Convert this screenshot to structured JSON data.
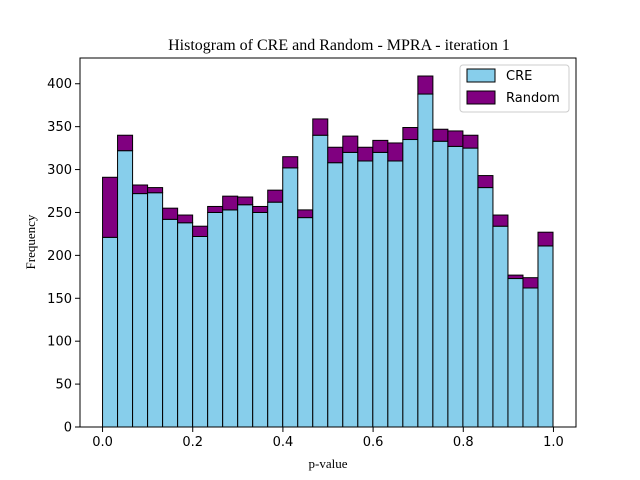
{
  "chart_data": {
    "type": "bar",
    "stacked": true,
    "title": "Histogram of CRE and Random - MPRA - iteration 1",
    "xlabel": "p-value",
    "ylabel": "Frequency",
    "xlim": [
      -0.05,
      1.05
    ],
    "ylim": [
      0,
      430
    ],
    "xticks": [
      0.0,
      0.2,
      0.4,
      0.6,
      0.8,
      1.0
    ],
    "xtick_labels": [
      "0.0",
      "0.2",
      "0.4",
      "0.6",
      "0.8",
      "1.0"
    ],
    "yticks": [
      0,
      50,
      100,
      150,
      200,
      250,
      300,
      350,
      400
    ],
    "ytick_labels": [
      "0",
      "50",
      "100",
      "150",
      "200",
      "250",
      "300",
      "350",
      "400"
    ],
    "bin_start": 0.0,
    "bin_width": 0.0333,
    "bins": 30,
    "legend_position": "top-right",
    "grid": false,
    "series": [
      {
        "name": "CRE",
        "color": "#87ceeb",
        "values": [
          221,
          322,
          272,
          273,
          242,
          238,
          222,
          250,
          253,
          259,
          250,
          262,
          302,
          244,
          340,
          308,
          320,
          310,
          320,
          310,
          335,
          388,
          333,
          327,
          325,
          279,
          234,
          173,
          162,
          211
        ]
      },
      {
        "name": "Random",
        "color": "#800080",
        "values": [
          70,
          18,
          10,
          6,
          13,
          9,
          12,
          7,
          16,
          9,
          7,
          14,
          13,
          9,
          19,
          18,
          19,
          16,
          14,
          21,
          14,
          21,
          14,
          18,
          15,
          14,
          13,
          4,
          12,
          16
        ]
      }
    ]
  }
}
